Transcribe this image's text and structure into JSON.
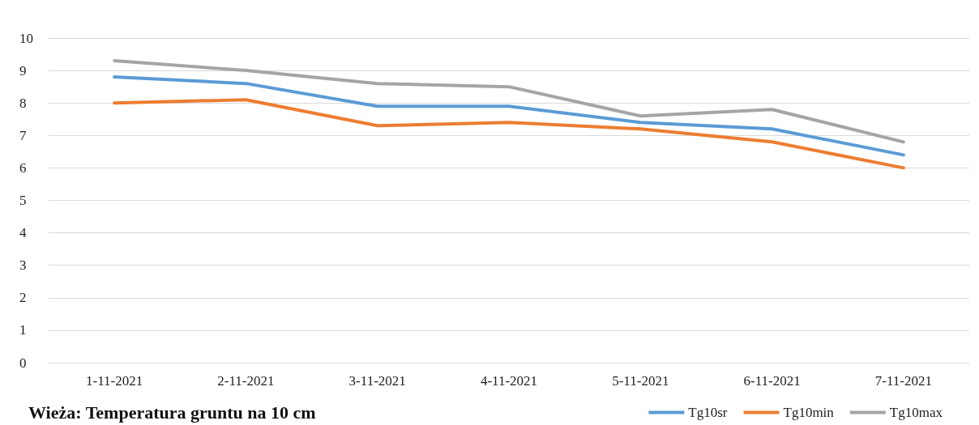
{
  "chart_data": {
    "type": "line",
    "title": "Wieża: Temperatura gruntu na 10 cm",
    "categories": [
      "1-11-2021",
      "2-11-2021",
      "3-11-2021",
      "4-11-2021",
      "5-11-2021",
      "6-11-2021",
      "7-11-2021"
    ],
    "series": [
      {
        "name": "Tg10sr",
        "color": "#5b9bd5",
        "values": [
          8.8,
          8.6,
          7.9,
          7.9,
          7.4,
          7.2,
          6.4
        ]
      },
      {
        "name": "Tg10min",
        "color": "#ed7d31",
        "values": [
          8.0,
          8.1,
          7.3,
          7.4,
          7.2,
          6.8,
          6.0
        ]
      },
      {
        "name": "Tg10max",
        "color": "#a5a5a5",
        "values": [
          9.3,
          9.0,
          8.6,
          8.5,
          7.6,
          7.8,
          6.8
        ]
      }
    ],
    "ylim": [
      0,
      10
    ],
    "yticks": [
      0,
      1,
      2,
      3,
      4,
      5,
      6,
      7,
      8,
      9,
      10
    ],
    "grid": "y",
    "legend": "bottom right",
    "marker": "none",
    "line_style": "solid"
  }
}
